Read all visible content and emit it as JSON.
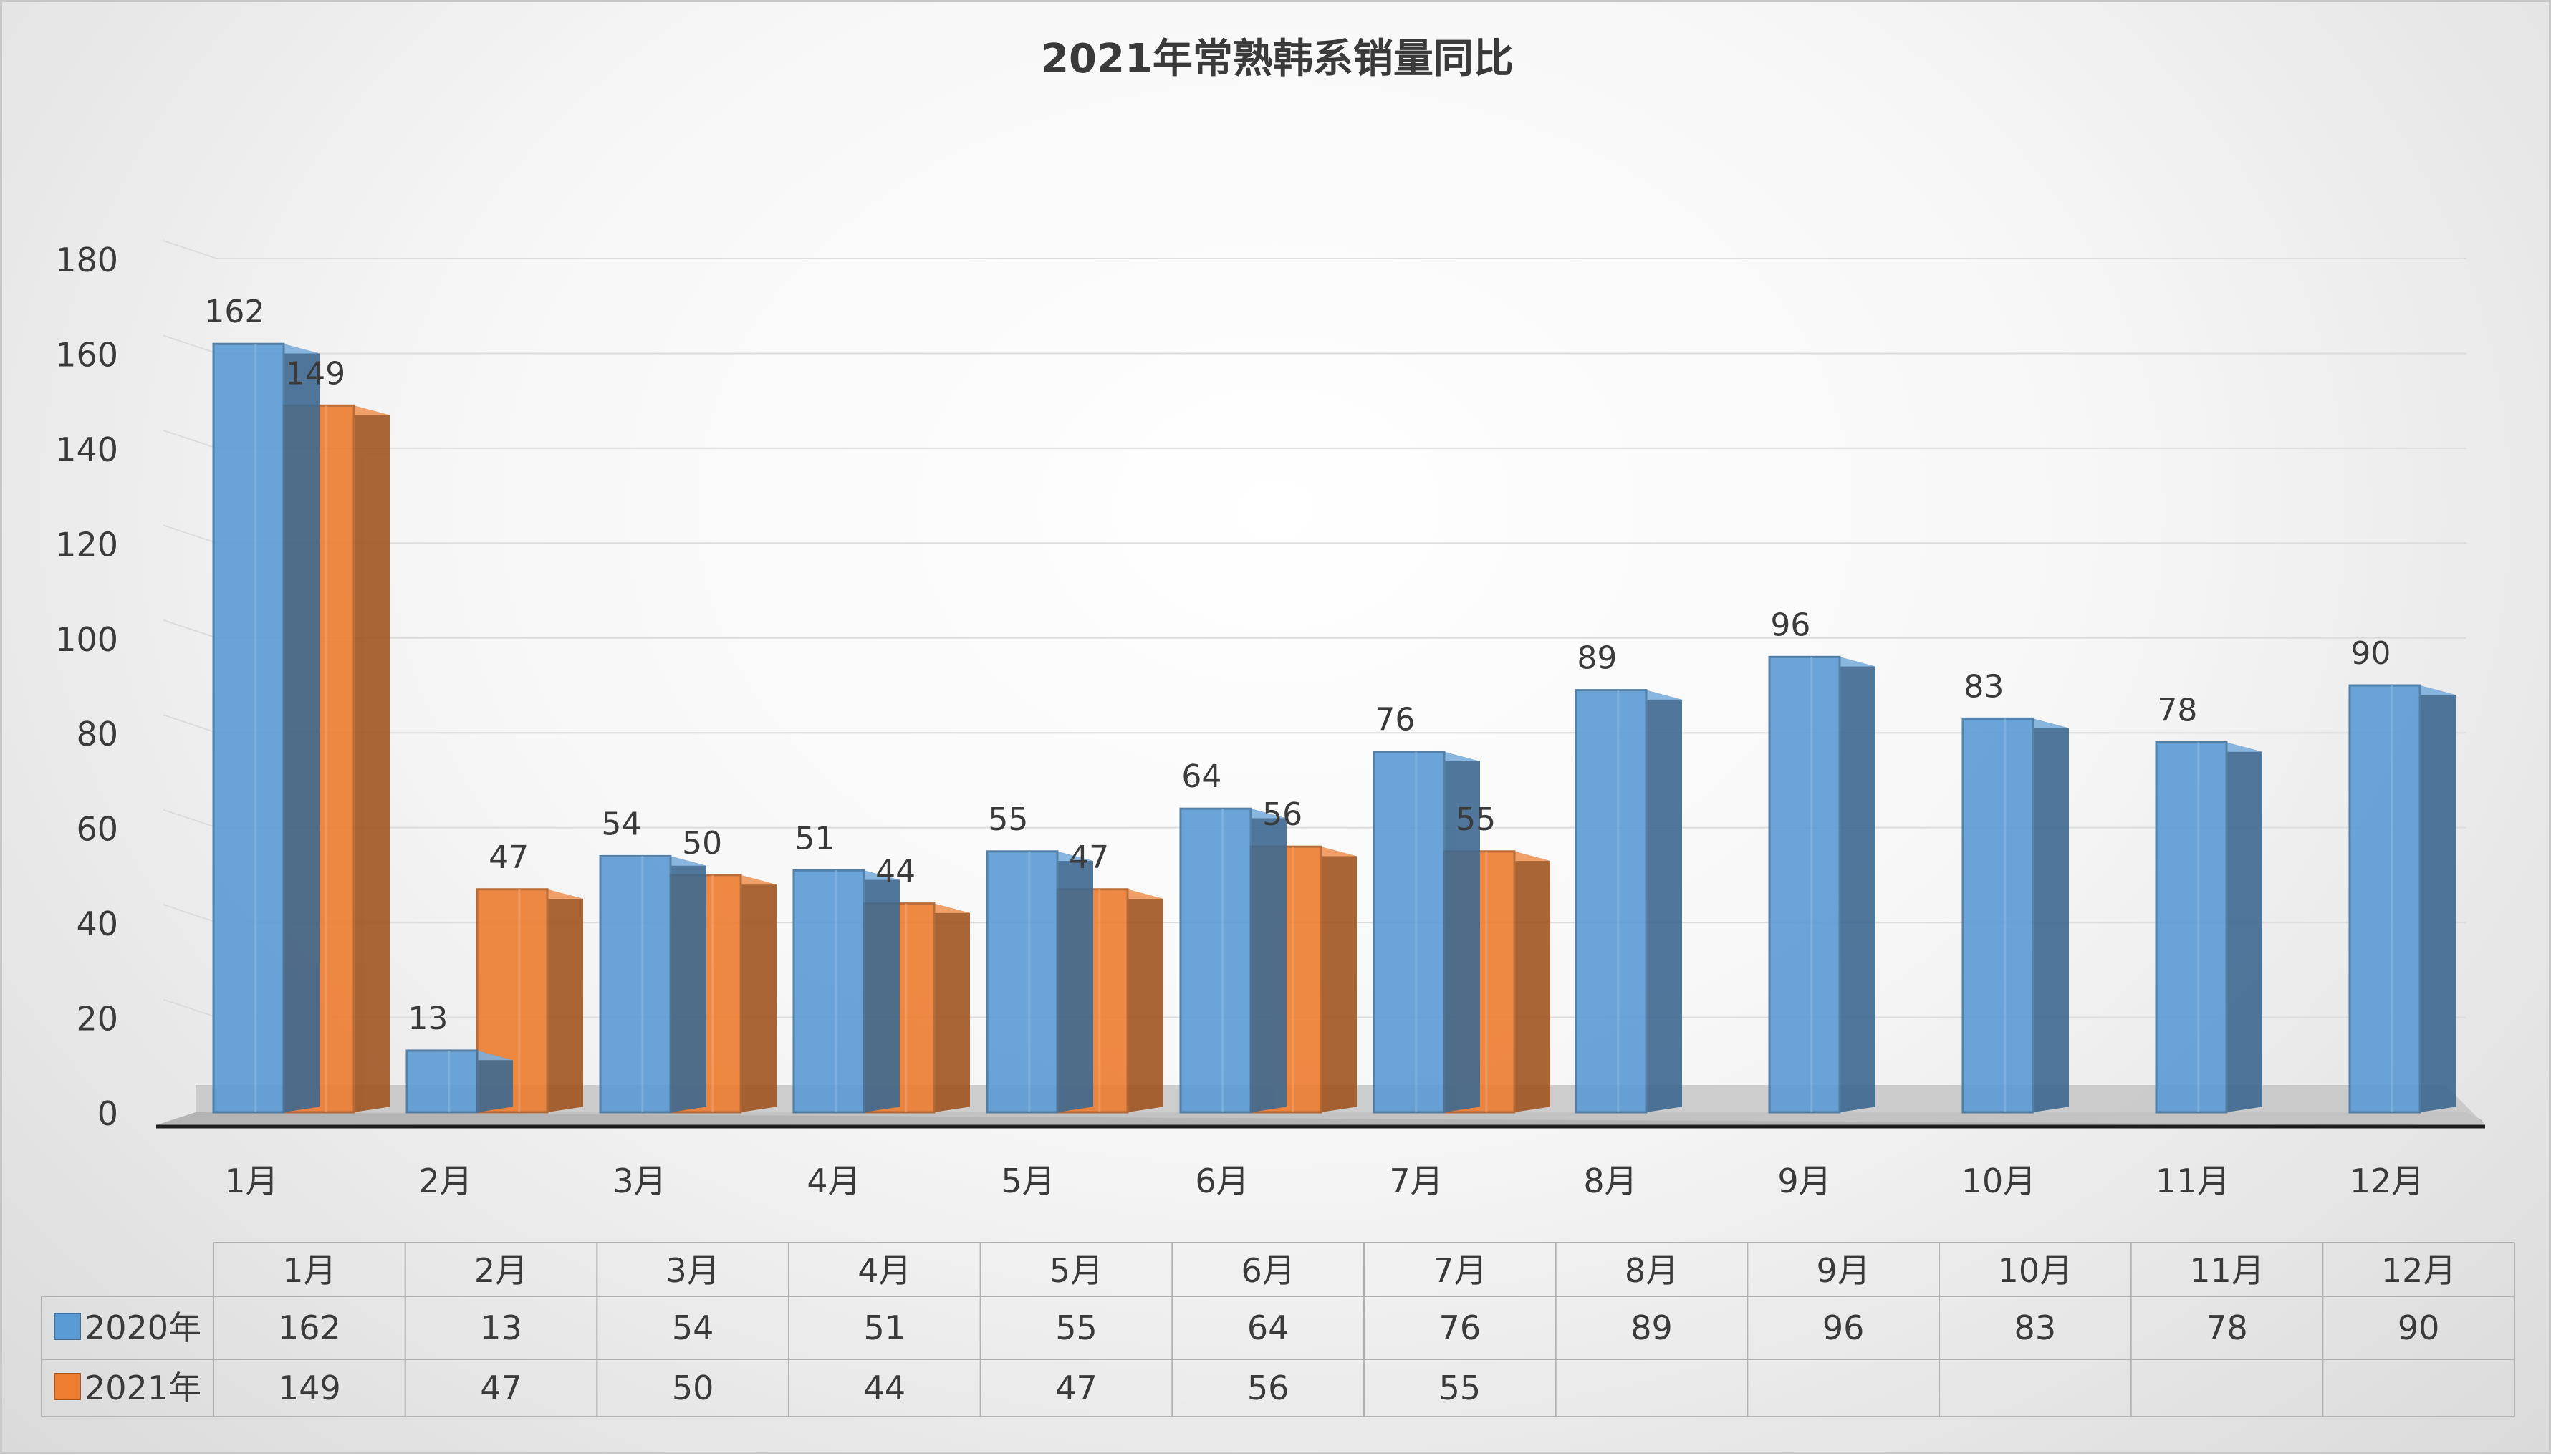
{
  "chart_data": {
    "type": "bar",
    "title": "2021年常熟韩系销量同比",
    "categories": [
      "1月",
      "2月",
      "3月",
      "4月",
      "5月",
      "6月",
      "7月",
      "8月",
      "9月",
      "10月",
      "11月",
      "12月"
    ],
    "series": [
      {
        "name": "2020年",
        "color": "#5b9bd5",
        "values": [
          162,
          13,
          54,
          51,
          55,
          64,
          76,
          89,
          96,
          83,
          78,
          90
        ]
      },
      {
        "name": "2021年",
        "color": "#ed7d31",
        "values": [
          149,
          47,
          50,
          44,
          47,
          56,
          55,
          null,
          null,
          null,
          null,
          null
        ]
      }
    ],
    "ylim": [
      0,
      180
    ],
    "yticks": [
      0,
      20,
      40,
      60,
      80,
      100,
      120,
      140,
      160,
      180
    ],
    "grid": true,
    "legend": "data-table",
    "data_table": true
  }
}
